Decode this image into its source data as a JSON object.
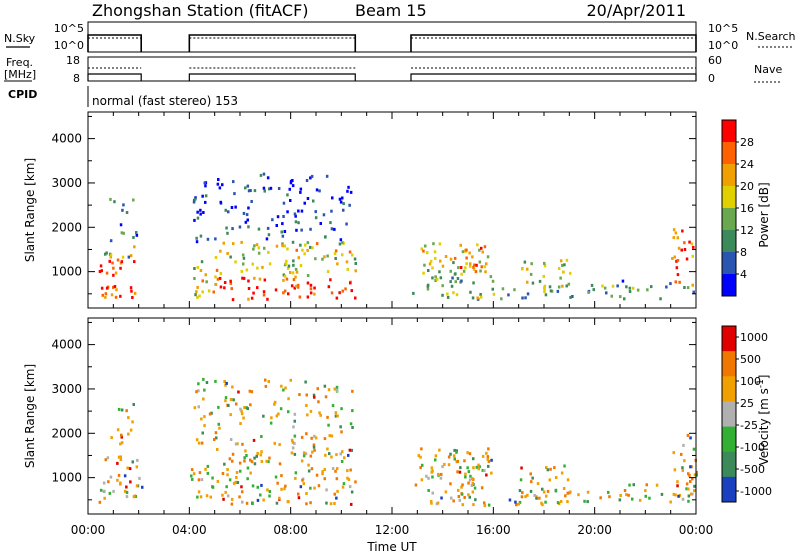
{
  "header": {
    "station": "Zhongshan Station (fitACF)",
    "beam": "Beam 15",
    "date": "20/Apr/2011"
  },
  "params": {
    "nsky_label": "N.Sky",
    "nsky_ticks": [
      "10^5",
      "10^0"
    ],
    "nsearch_label": "N.Search",
    "nsearch_ticks": [
      "10^5",
      "10^0"
    ],
    "freq_label_1": "Freq.",
    "freq_label_2": "[MHz]",
    "freq_ticks": [
      "18",
      "8"
    ],
    "nave_label": "Nave",
    "nave_ticks": [
      "60",
      "0"
    ],
    "cpid_label": "CPID",
    "cpid_value": "normal (fast stereo) 153",
    "data_gaps_h": [
      [
        2.1,
        4.0
      ],
      [
        10.55,
        12.75
      ]
    ]
  },
  "chart_data": {
    "type": "heatmap",
    "x_axis": {
      "label": "Time UT",
      "range_h": [
        0,
        24
      ],
      "tick_labels": [
        "00:00",
        "04:00",
        "08:00",
        "12:00",
        "16:00",
        "20:00",
        "00:00"
      ]
    },
    "y_axis": {
      "label": "Slant Range [km]",
      "range_km": [
        180,
        4600
      ],
      "tick_labels": [
        "1000",
        "2000",
        "3000",
        "4000"
      ]
    },
    "power": {
      "colorbar_label": "Power [dB]",
      "colorbar_ticks": [
        "4",
        "8",
        "12",
        "16",
        "20",
        "24",
        "28"
      ],
      "range": [
        0,
        30
      ],
      "colors": [
        "#0000ff",
        "#2a55b0",
        "#3c8a5a",
        "#6aa84f",
        "#e0d000",
        "#f0a000",
        "#ff6000",
        "#ff0000"
      ]
    },
    "velocity": {
      "colorbar_label": "Velocity [m s^-1]",
      "colorbar_ticks": [
        "1000",
        "500",
        "100",
        "25",
        "-25",
        "-100",
        "-500",
        "-1000"
      ],
      "colors": [
        "#1a40c0",
        "#3c8a5a",
        "#33b033",
        "#b0b0b0",
        "#f0a000",
        "#f07800",
        "#e00000"
      ]
    },
    "echo_regions": [
      {
        "t": [
          0.4,
          2.1
        ],
        "r": [
          420,
          1300
        ],
        "level": 0.9
      },
      {
        "t": [
          0.6,
          1.9
        ],
        "r": [
          1300,
          1600
        ],
        "level": 0.45
      },
      {
        "t": [
          0.8,
          1.9
        ],
        "r": [
          1700,
          2700
        ],
        "level": 0.25
      },
      {
        "t": [
          4.0,
          5.0
        ],
        "r": [
          420,
          1300
        ],
        "level": 0.55
      },
      {
        "t": [
          5.0,
          10.55
        ],
        "r": [
          400,
          900
        ],
        "level": 0.9
      },
      {
        "t": [
          5.0,
          10.55
        ],
        "r": [
          900,
          1700
        ],
        "level": 0.55
      },
      {
        "t": [
          4.1,
          10.4
        ],
        "r": [
          1700,
          3250
        ],
        "level": 0.15
      },
      {
        "t": [
          12.75,
          16.0
        ],
        "r": [
          400,
          900
        ],
        "level": 0.45
      },
      {
        "t": [
          13.0,
          15.9
        ],
        "r": [
          900,
          1700
        ],
        "level": 0.55
      },
      {
        "t": [
          14.3,
          15.9
        ],
        "r": [
          1100,
          1600
        ],
        "level": 0.8
      },
      {
        "t": [
          16.2,
          21.5
        ],
        "r": [
          420,
          750
        ],
        "level": 0.35
      },
      {
        "t": [
          17.0,
          19.0
        ],
        "r": [
          600,
          1300
        ],
        "level": 0.5
      },
      {
        "t": [
          21.0,
          24.0
        ],
        "r": [
          420,
          900
        ],
        "level": 0.3
      },
      {
        "t": [
          23.0,
          24.0
        ],
        "r": [
          600,
          2000
        ],
        "level": 0.75
      }
    ]
  }
}
